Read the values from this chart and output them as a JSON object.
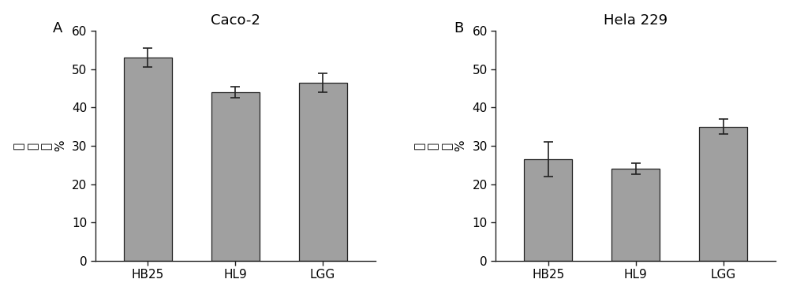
{
  "panel_A": {
    "title": "Caco-2",
    "label": "A",
    "categories": [
      "HB25",
      "HL9",
      "LGG"
    ],
    "values": [
      53.0,
      44.0,
      46.5
    ],
    "errors": [
      2.5,
      1.5,
      2.5
    ],
    "ylabel_chars": [
      "粘",
      "附",
      "率",
      "%"
    ],
    "ylim": [
      0,
      60
    ],
    "yticks": [
      0,
      10,
      20,
      30,
      40,
      50,
      60
    ]
  },
  "panel_B": {
    "title": "Hela 229",
    "label": "B",
    "categories": [
      "HB25",
      "HL9",
      "LGG"
    ],
    "values": [
      26.5,
      24.0,
      35.0
    ],
    "errors": [
      4.5,
      1.5,
      2.0
    ],
    "ylabel_chars": [
      "粘",
      "附",
      "率",
      "%"
    ],
    "ylim": [
      0,
      60
    ],
    "yticks": [
      0,
      10,
      20,
      30,
      40,
      50,
      60
    ]
  },
  "bar_color": "#a0a0a0",
  "bar_edgecolor": "#222222",
  "background_color": "#ffffff",
  "bar_width": 0.55,
  "fontsize_title": 13,
  "fontsize_label": 11,
  "fontsize_tick": 11,
  "fontsize_panel_label": 13,
  "ecolor": "#222222",
  "capsize": 4
}
